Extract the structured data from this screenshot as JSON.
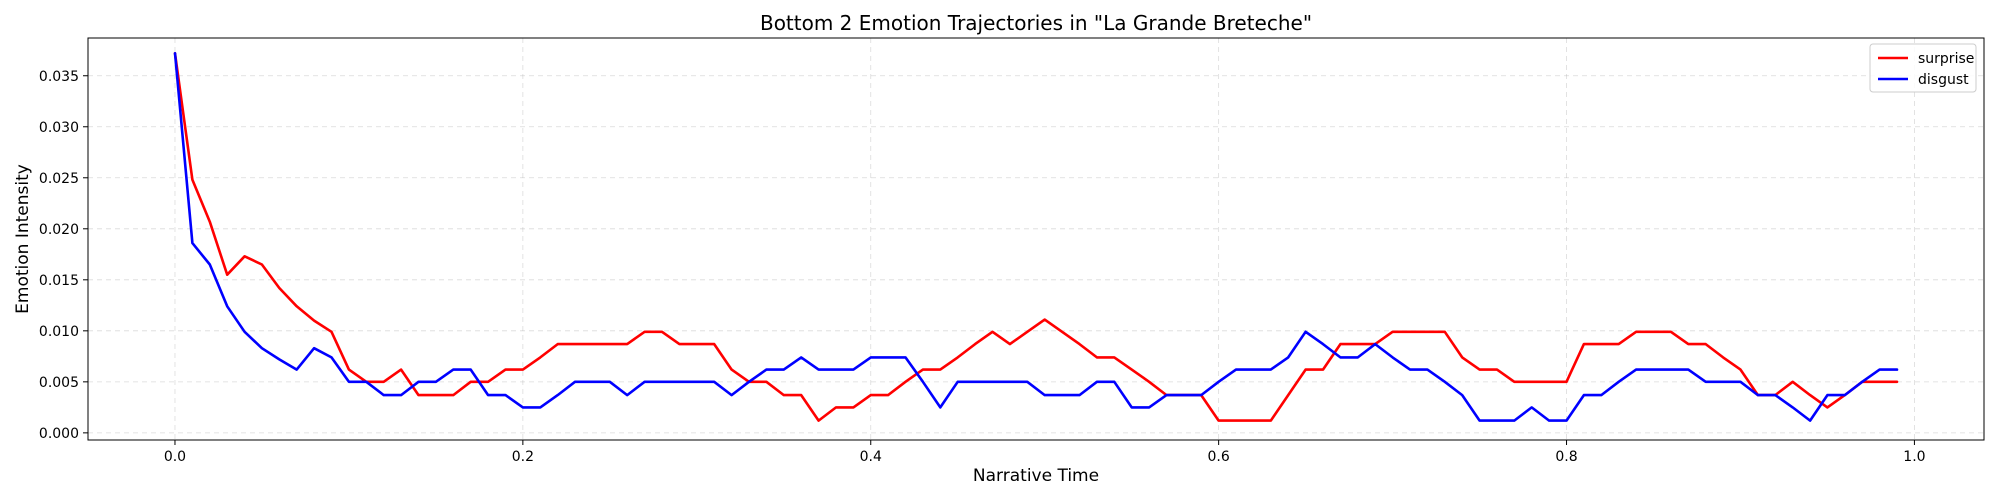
{
  "chart_data": {
    "type": "line",
    "title": "Bottom 2 Emotion Trajectories in \"La Grande Breteche\"",
    "xlabel": "Narrative Time",
    "ylabel": "Emotion Intensity",
    "xlim": [
      -0.05,
      1.04
    ],
    "ylim": [
      -0.0007,
      0.0387
    ],
    "xticks": [
      0.0,
      0.2,
      0.4,
      0.6,
      0.8,
      1.0
    ],
    "xtick_labels": [
      "0.0",
      "0.2",
      "0.4",
      "0.6",
      "0.8",
      "1.0"
    ],
    "yticks": [
      0.0,
      0.005,
      0.01,
      0.015,
      0.02,
      0.025,
      0.03,
      0.035
    ],
    "ytick_labels": [
      "0.000",
      "0.005",
      "0.010",
      "0.015",
      "0.020",
      "0.025",
      "0.030",
      "0.035"
    ],
    "grid": true,
    "legend_position": "top-right",
    "x": [
      0.0,
      0.01,
      0.02,
      0.03,
      0.04,
      0.05,
      0.06,
      0.07,
      0.08,
      0.09,
      0.1,
      0.11,
      0.12,
      0.13,
      0.14,
      0.15,
      0.16,
      0.17,
      0.18,
      0.19,
      0.2,
      0.21,
      0.22,
      0.23,
      0.24,
      0.25,
      0.26,
      0.27,
      0.28,
      0.29,
      0.3,
      0.31,
      0.32,
      0.33,
      0.34,
      0.35,
      0.36,
      0.37,
      0.38,
      0.39,
      0.4,
      0.41,
      0.42,
      0.43,
      0.44,
      0.45,
      0.46,
      0.47,
      0.48,
      0.49,
      0.5,
      0.51,
      0.52,
      0.53,
      0.54,
      0.55,
      0.56,
      0.57,
      0.58,
      0.59,
      0.6,
      0.61,
      0.62,
      0.63,
      0.64,
      0.65,
      0.66,
      0.67,
      0.68,
      0.69,
      0.7,
      0.71,
      0.72,
      0.73,
      0.74,
      0.75,
      0.76,
      0.77,
      0.78,
      0.79,
      0.8,
      0.81,
      0.82,
      0.83,
      0.84,
      0.85,
      0.86,
      0.87,
      0.88,
      0.89,
      0.9,
      0.91,
      0.92,
      0.93,
      0.94,
      0.95,
      0.96,
      0.97,
      0.98,
      0.99
    ],
    "series": [
      {
        "name": "surprise",
        "color": "#ff0000",
        "values": [
          0.0372,
          0.0248,
          0.0207,
          0.0155,
          0.0173,
          0.0165,
          0.0142,
          0.0124,
          0.011,
          0.0099,
          0.0062,
          0.005,
          0.005,
          0.0062,
          0.0037,
          0.0037,
          0.0037,
          0.005,
          0.005,
          0.0062,
          0.0062,
          0.0074,
          0.0087,
          0.0087,
          0.0087,
          0.0087,
          0.0087,
          0.0099,
          0.0099,
          0.0087,
          0.0087,
          0.0087,
          0.0062,
          0.005,
          0.005,
          0.0037,
          0.0037,
          0.0012,
          0.0025,
          0.0025,
          0.0037,
          0.0037,
          0.005,
          0.0062,
          0.0062,
          0.0074,
          0.0087,
          0.0099,
          0.0087,
          0.0099,
          0.0111,
          0.0099,
          0.0087,
          0.0074,
          0.0074,
          0.0062,
          0.005,
          0.0037,
          0.0037,
          0.0037,
          0.0012,
          0.0012,
          0.0012,
          0.0012,
          0.0037,
          0.0062,
          0.0062,
          0.0087,
          0.0087,
          0.0087,
          0.0099,
          0.0099,
          0.0099,
          0.0099,
          0.0074,
          0.0062,
          0.0062,
          0.005,
          0.005,
          0.005,
          0.005,
          0.0087,
          0.0087,
          0.0087,
          0.0099,
          0.0099,
          0.0099,
          0.0087,
          0.0087,
          0.0074,
          0.0062,
          0.0037,
          0.0037,
          0.005,
          0.0037,
          0.0025,
          0.0037,
          0.005,
          0.005,
          0.005
        ]
      },
      {
        "name": "disgust",
        "color": "#0000ff",
        "values": [
          0.0372,
          0.0186,
          0.0165,
          0.0124,
          0.0099,
          0.0083,
          0.0072,
          0.0062,
          0.0083,
          0.0074,
          0.005,
          0.005,
          0.0037,
          0.0037,
          0.005,
          0.005,
          0.0062,
          0.0062,
          0.0037,
          0.0037,
          0.0025,
          0.0025,
          0.0037,
          0.005,
          0.005,
          0.005,
          0.0037,
          0.005,
          0.005,
          0.005,
          0.005,
          0.005,
          0.0037,
          0.005,
          0.0062,
          0.0062,
          0.0074,
          0.0062,
          0.0062,
          0.0062,
          0.0074,
          0.0074,
          0.0074,
          0.005,
          0.0025,
          0.005,
          0.005,
          0.005,
          0.005,
          0.005,
          0.0037,
          0.0037,
          0.0037,
          0.005,
          0.005,
          0.0025,
          0.0025,
          0.0037,
          0.0037,
          0.0037,
          0.005,
          0.0062,
          0.0062,
          0.0062,
          0.0074,
          0.0099,
          0.0087,
          0.0074,
          0.0074,
          0.0087,
          0.0074,
          0.0062,
          0.0062,
          0.005,
          0.0037,
          0.0012,
          0.0012,
          0.0012,
          0.0025,
          0.0012,
          0.0012,
          0.0037,
          0.0037,
          0.005,
          0.0062,
          0.0062,
          0.0062,
          0.0062,
          0.005,
          0.005,
          0.005,
          0.0037,
          0.0037,
          0.0025,
          0.0012,
          0.0037,
          0.0037,
          0.005,
          0.0062,
          0.0062
        ]
      }
    ]
  }
}
